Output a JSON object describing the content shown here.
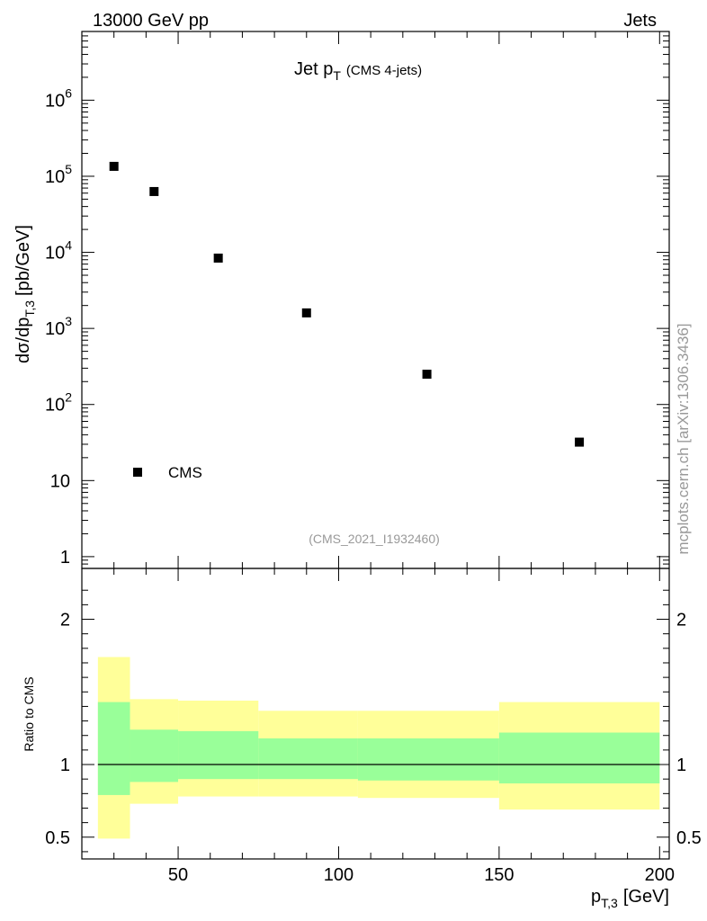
{
  "header": {
    "left": "13000 GeV pp",
    "right": "Jets"
  },
  "side_label": "mcplots.cern.ch [arXiv:1306.3436]",
  "chart_data": [
    {
      "type": "scatter",
      "title_main": "Jet p",
      "title_sub": "T",
      "title_note": "(CMS 4-jets)",
      "analysis_label": "(CMS_2021_I1932460)",
      "ylabel_main": "dσ/dp",
      "ylabel_sub": "T,3",
      "ylabel_unit": "[pb/GeV]",
      "yscale": "log",
      "xlim": [
        20,
        203
      ],
      "ylim": [
        0.7,
        8000000
      ],
      "ytick_labels": [
        {
          "value": 1,
          "base": "1",
          "exp": ""
        },
        {
          "value": 10,
          "base": "10",
          "exp": ""
        },
        {
          "value": 100,
          "base": "10",
          "exp": "2"
        },
        {
          "value": 1000,
          "base": "10",
          "exp": "3"
        },
        {
          "value": 10000,
          "base": "10",
          "exp": "4"
        },
        {
          "value": 100000,
          "base": "10",
          "exp": "5"
        },
        {
          "value": 1000000,
          "base": "10",
          "exp": "6"
        }
      ],
      "legend": {
        "position": "bottom-left",
        "label": "CMS"
      },
      "series": [
        {
          "name": "CMS",
          "color": "#000000",
          "x": [
            30,
            42.5,
            62.5,
            90,
            127.5,
            175
          ],
          "y": [
            135000,
            63000,
            8400,
            1600,
            250,
            32
          ]
        }
      ]
    },
    {
      "type": "area",
      "ylabel": "Ratio to CMS",
      "xlabel_main": "p",
      "xlabel_sub": "T,3",
      "xlabel_unit": "[GeV]",
      "xlim": [
        20,
        203
      ],
      "ylim": [
        0.35,
        2.35
      ],
      "xtick_labels": [
        50,
        100,
        150,
        200
      ],
      "ytick_labels": [
        0.5,
        1,
        2
      ],
      "reference_line": 1,
      "bands": {
        "bins": [
          [
            25,
            35
          ],
          [
            35,
            50
          ],
          [
            50,
            75
          ],
          [
            75,
            106
          ],
          [
            106,
            150
          ],
          [
            150,
            200
          ]
        ],
        "outer_color": "#ffff99",
        "inner_color": "#99ff99",
        "outer_low": [
          0.49,
          0.73,
          0.78,
          0.78,
          0.77,
          0.69
        ],
        "outer_high": [
          1.74,
          1.45,
          1.44,
          1.37,
          1.37,
          1.43
        ],
        "inner_low": [
          0.79,
          0.88,
          0.9,
          0.9,
          0.89,
          0.87
        ],
        "inner_high": [
          1.43,
          1.24,
          1.23,
          1.18,
          1.18,
          1.22
        ]
      }
    }
  ]
}
